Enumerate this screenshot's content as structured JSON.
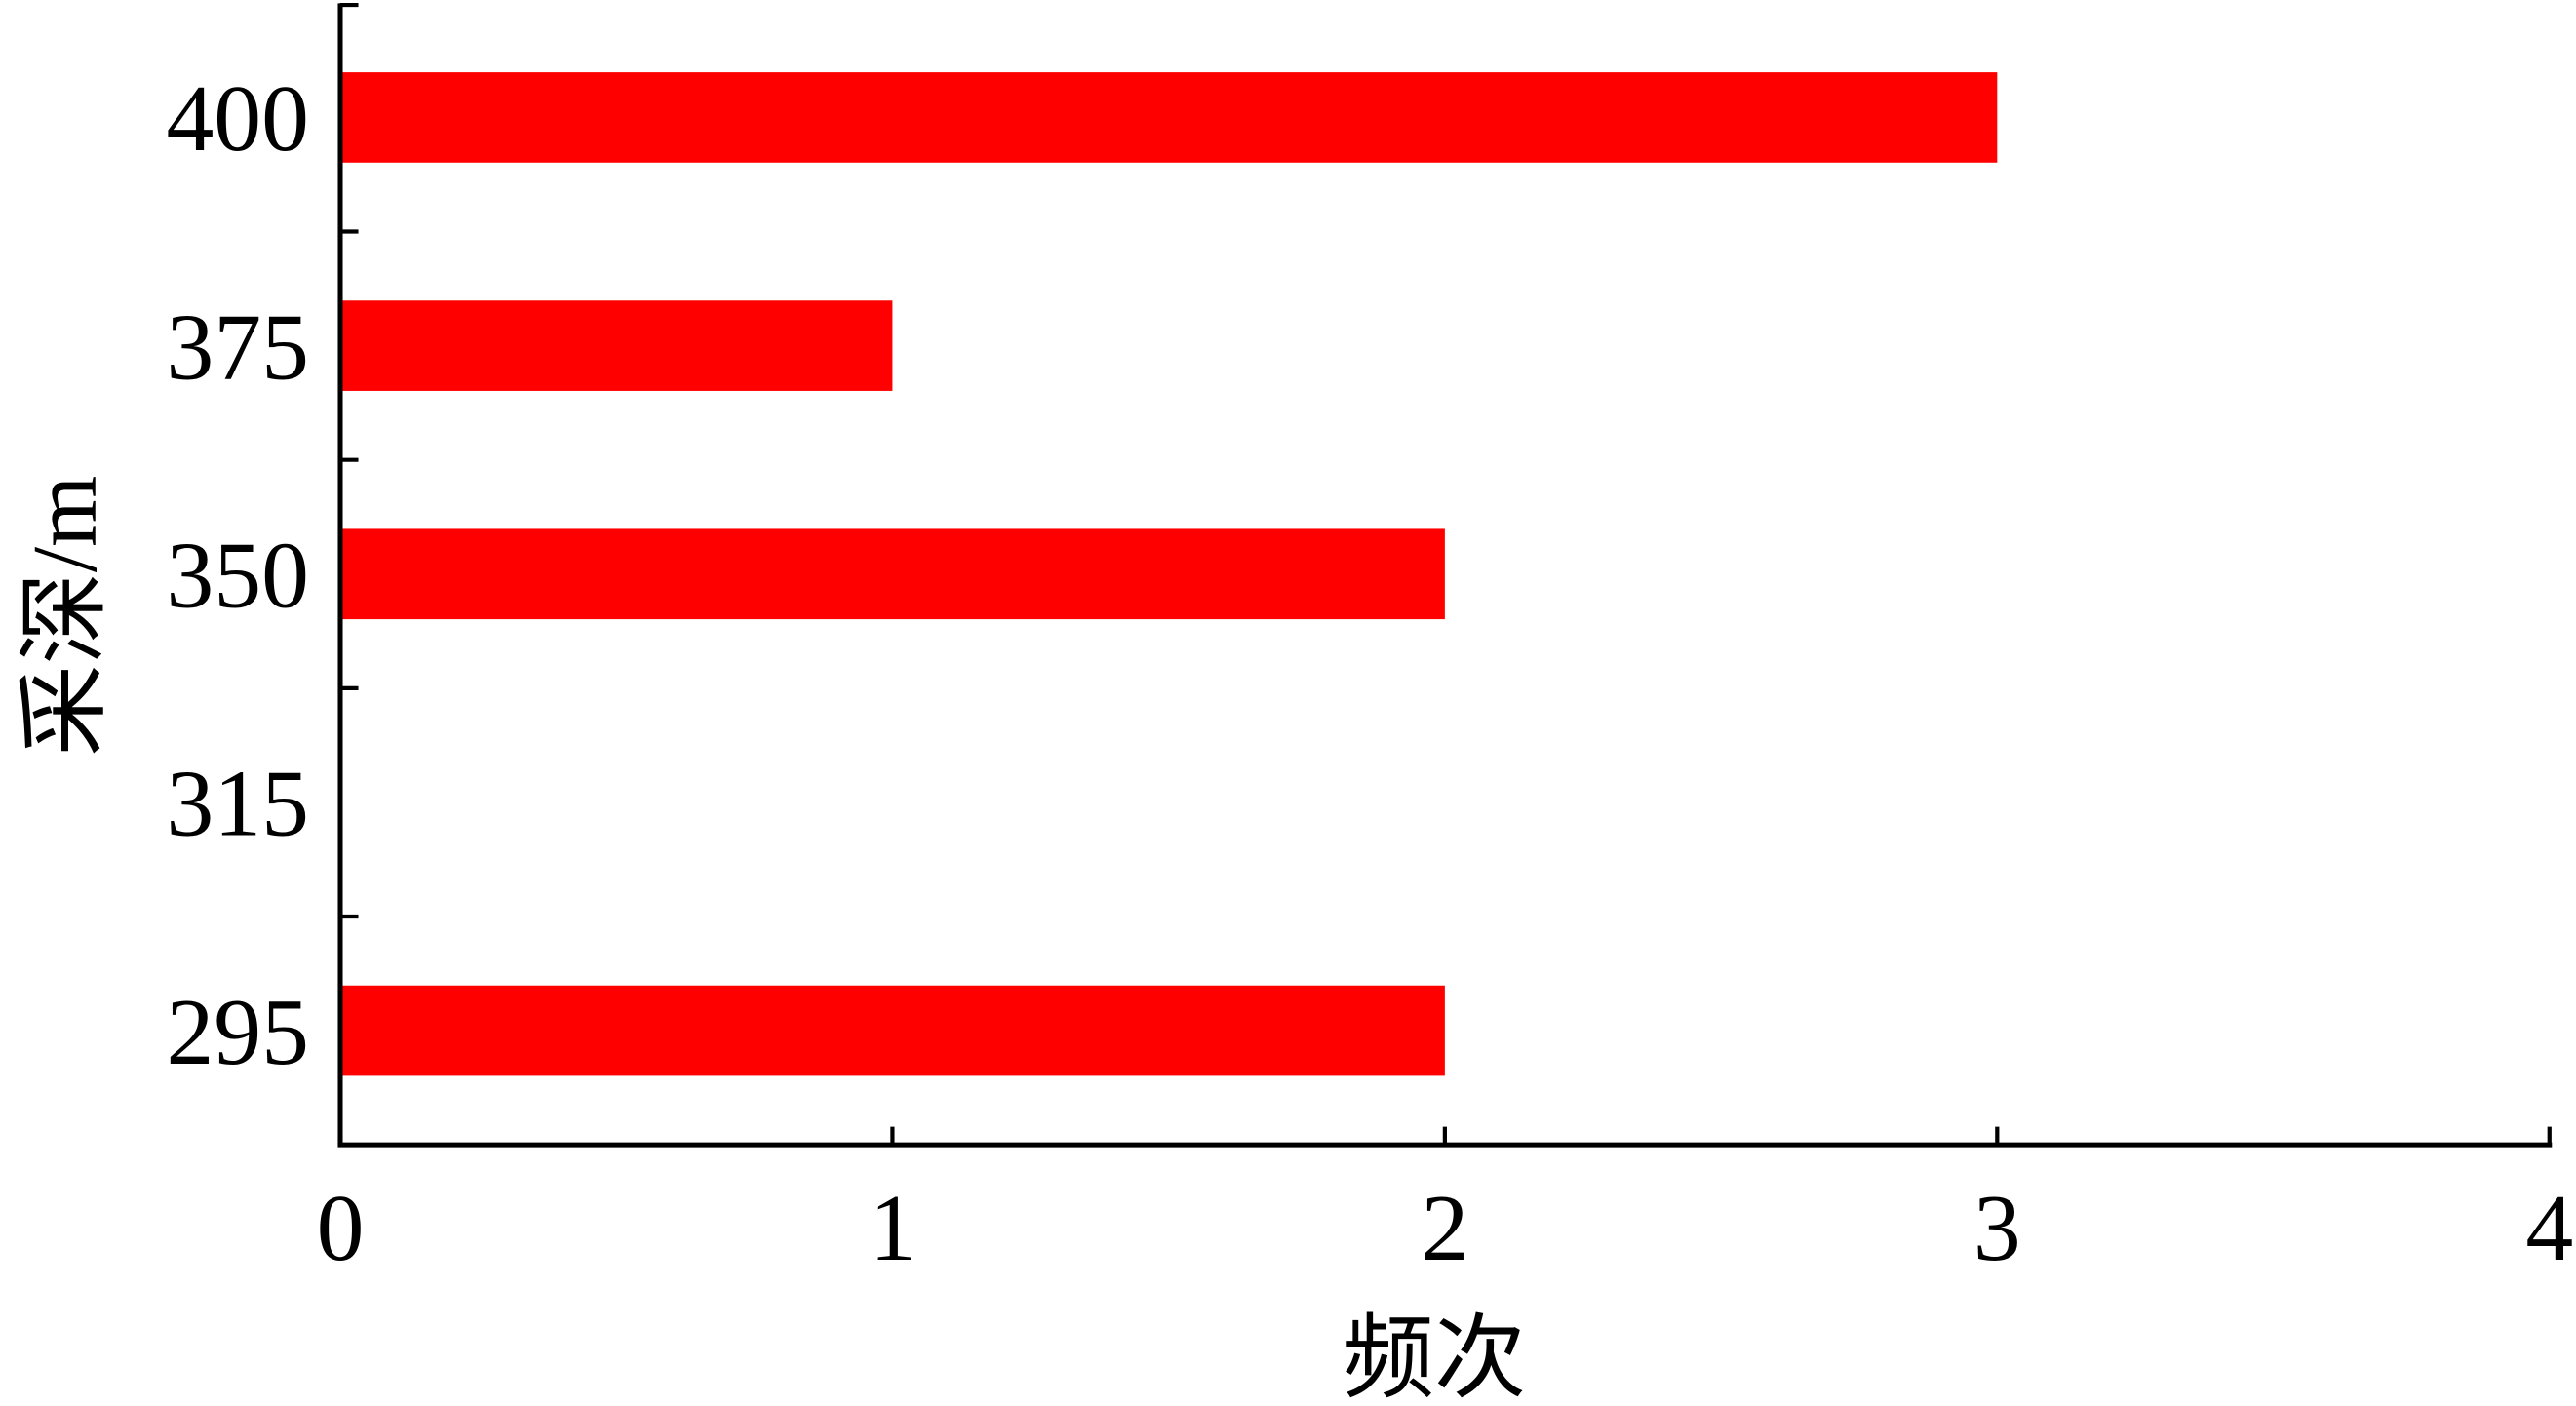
{
  "chart_data": {
    "type": "bar",
    "orientation": "horizontal",
    "title": "",
    "xlabel": "频次",
    "ylabel": "采深/m",
    "categories": [
      "400",
      "375",
      "350",
      "315",
      "295"
    ],
    "values": [
      3,
      1,
      2,
      0,
      2
    ],
    "xlim": [
      0,
      4
    ],
    "xticks": [
      "0",
      "1",
      "2",
      "3",
      "4"
    ],
    "grid": false,
    "bar_color": "#ff0000",
    "axis_color": "#000000"
  }
}
